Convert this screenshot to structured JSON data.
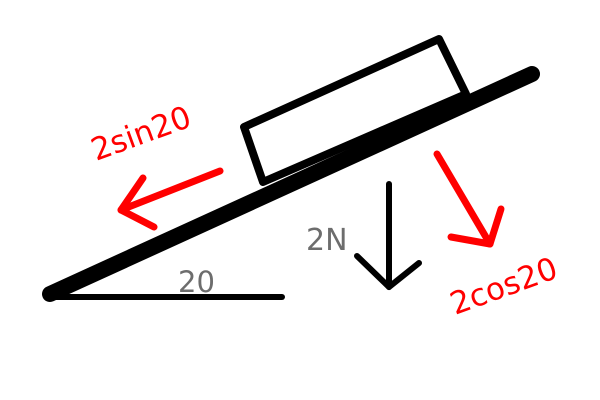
{
  "labels": {
    "parallel_force": "2sin20",
    "weight": "2N",
    "perpendicular_force": "2cos20",
    "angle": "20"
  },
  "colors": {
    "structure": "#000000",
    "component_force": "#ff0000",
    "grey_label": "#6d6d6d",
    "background": "#ffffff"
  }
}
